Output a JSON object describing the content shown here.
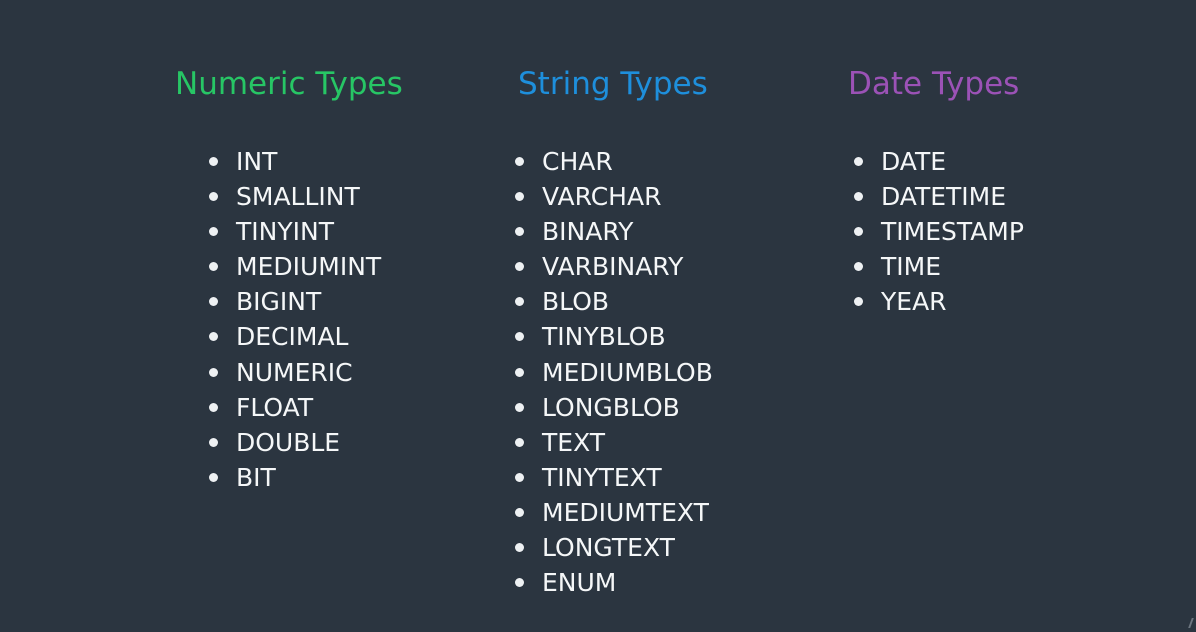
{
  "colors": {
    "background": "#2b3540",
    "numeric_heading": "#27c665",
    "string_heading": "#1e8fdc",
    "date_heading": "#9b52b6",
    "item_text": "#f5f7f8"
  },
  "columns": [
    {
      "heading": "Numeric Types",
      "items": [
        "INT",
        "SMALLINT",
        "TINYINT",
        "MEDIUMINT",
        "BIGINT",
        "DECIMAL",
        "NUMERIC",
        "FLOAT",
        "DOUBLE",
        "BIT"
      ]
    },
    {
      "heading": "String Types",
      "items": [
        "CHAR",
        "VARCHAR",
        "BINARY",
        "VARBINARY",
        "BLOB",
        "TINYBLOB",
        "MEDIUMBLOB",
        "LONGBLOB",
        "TEXT",
        "TINYTEXT",
        "MEDIUMTEXT",
        "LONGTEXT",
        "ENUM"
      ]
    },
    {
      "heading": "Date Types",
      "items": [
        "DATE",
        "DATETIME",
        "TIMESTAMP",
        "TIME",
        "YEAR"
      ]
    }
  ]
}
